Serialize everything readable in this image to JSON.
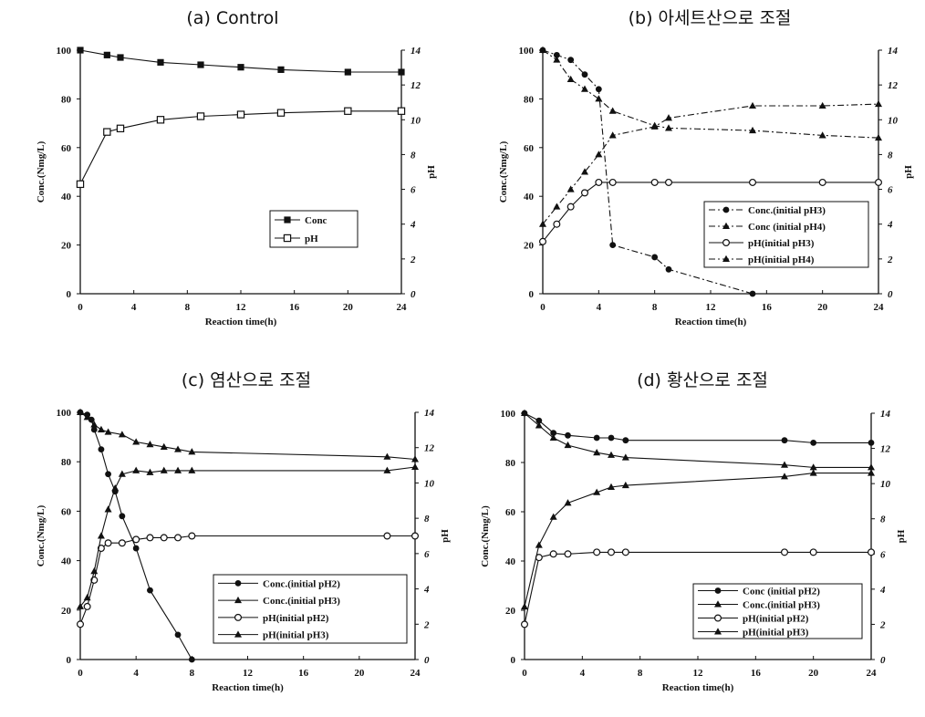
{
  "figure": {
    "panels": [
      {
        "title": "(a) Control",
        "xlabel": "Reaction time(h)",
        "ylabel": "Conc.(Nmg/L)",
        "y2label": "pH"
      },
      {
        "title": "(b) 아세트산으로 조절",
        "xlabel": "Reaction time(h)",
        "ylabel": "Conc.(Nmg/L)",
        "y2label": "pH"
      },
      {
        "title": "(c) 염산으로 조절",
        "xlabel": "Reaction time(h)",
        "ylabel": "Conc.(Nmg/L)",
        "y2label": "pH"
      },
      {
        "title": "(d) 황산으로 조절",
        "xlabel": "Reaction time(h)",
        "ylabel": "Conc.(Nmg/L)",
        "y2label": "pH"
      }
    ]
  },
  "chart_data": [
    {
      "type": "line",
      "title": "(a) Control",
      "xlabel": "Reaction time(h)",
      "ylabel": "Conc.(Nmg/L)",
      "y2label": "pH",
      "xlim": [
        0,
        24
      ],
      "ylim": [
        0,
        100
      ],
      "y2lim": [
        0,
        14
      ],
      "xticks": [
        0,
        4,
        8,
        12,
        16,
        20,
        24
      ],
      "yticks": [
        0,
        20,
        40,
        60,
        80,
        100
      ],
      "y2ticks": [
        0,
        2,
        4,
        6,
        8,
        10,
        12,
        14
      ],
      "legend_position": "middle-right",
      "series": [
        {
          "name": "Conc",
          "axis": "left",
          "marker": "square-filled",
          "dash": "solid",
          "x": [
            0,
            2,
            3,
            6,
            9,
            12,
            15,
            20,
            24
          ],
          "y": [
            100,
            98,
            97,
            95,
            94,
            93,
            92,
            91,
            91
          ]
        },
        {
          "name": "pH",
          "axis": "right",
          "marker": "square-open",
          "dash": "solid",
          "x": [
            0,
            2,
            3,
            6,
            9,
            12,
            15,
            20,
            24
          ],
          "y": [
            6.3,
            9.3,
            9.5,
            10.0,
            10.2,
            10.3,
            10.4,
            10.5,
            10.5
          ]
        }
      ]
    },
    {
      "type": "line",
      "title": "(b) 아세트산으로 조절",
      "xlabel": "Reaction time(h)",
      "ylabel": "Conc.(Nmg/L)",
      "y2label": "pH",
      "xlim": [
        0,
        24
      ],
      "ylim": [
        0,
        100
      ],
      "y2lim": [
        0,
        14
      ],
      "xticks": [
        0,
        4,
        8,
        12,
        16,
        20,
        24
      ],
      "yticks": [
        0,
        20,
        40,
        60,
        80,
        100
      ],
      "y2ticks": [
        0,
        2,
        4,
        6,
        8,
        10,
        12,
        14
      ],
      "legend_position": "middle-right",
      "series": [
        {
          "name": "Conc.(initial pH3)",
          "axis": "left",
          "marker": "circle-filled",
          "dash": "dashdot",
          "x": [
            0,
            1,
            2,
            3,
            4,
            5,
            8,
            9,
            15
          ],
          "y": [
            100,
            98,
            96,
            90,
            84,
            20,
            15,
            10,
            0
          ]
        },
        {
          "name": "Conc (initial pH4)",
          "axis": "left",
          "marker": "triangle-filled",
          "dash": "dashdot",
          "x": [
            0,
            1,
            2,
            3,
            4,
            5,
            8,
            9,
            15,
            20,
            24
          ],
          "y": [
            100,
            96,
            88,
            84,
            80,
            75,
            69,
            68,
            67,
            65,
            64
          ]
        },
        {
          "name": "pH(initial pH3)",
          "axis": "right",
          "marker": "circle-open",
          "dash": "solid",
          "x": [
            0,
            1,
            2,
            3,
            4,
            5,
            8,
            9,
            15,
            20,
            24
          ],
          "y": [
            3.0,
            4.0,
            5.0,
            5.8,
            6.4,
            6.4,
            6.4,
            6.4,
            6.4,
            6.4,
            6.4
          ]
        },
        {
          "name": "pH(initial pH4)",
          "axis": "right",
          "marker": "triangle-filled",
          "dash": "dashdot",
          "x": [
            0,
            1,
            2,
            3,
            4,
            5,
            8,
            9,
            15,
            20,
            24
          ],
          "y": [
            4.0,
            5.0,
            6.0,
            7.0,
            8.0,
            9.1,
            9.6,
            10.1,
            10.8,
            10.8,
            10.9
          ]
        }
      ]
    },
    {
      "type": "line",
      "title": "(c) 염산으로 조절",
      "xlabel": "Reaction time(h)",
      "ylabel": "Conc.(Nmg/L)",
      "y2label": "pH",
      "xlim": [
        0,
        24
      ],
      "ylim": [
        0,
        100
      ],
      "y2lim": [
        0,
        14
      ],
      "xticks": [
        0,
        4,
        8,
        12,
        16,
        20,
        24
      ],
      "yticks": [
        0,
        20,
        40,
        60,
        80,
        100
      ],
      "y2ticks": [
        0,
        2,
        4,
        6,
        8,
        10,
        12,
        14
      ],
      "legend_position": "bottom-right",
      "series": [
        {
          "name": "Conc.(initial pH2)",
          "axis": "left",
          "marker": "circle-filled",
          "dash": "solid",
          "x": [
            0,
            0.5,
            0.8,
            1,
            1.5,
            2,
            2.5,
            3,
            4,
            5,
            7,
            8
          ],
          "y": [
            100,
            99,
            97,
            93,
            85,
            75,
            68,
            58,
            45,
            28,
            10,
            0
          ]
        },
        {
          "name": "Conc.(initial pH3)",
          "axis": "left",
          "marker": "triangle-filled",
          "dash": "solid",
          "x": [
            0,
            0.5,
            1,
            1.5,
            2,
            3,
            4,
            5,
            6,
            7,
            8,
            22,
            24
          ],
          "y": [
            100,
            98,
            95,
            93,
            92,
            91,
            88,
            87,
            86,
            85,
            84,
            82,
            81
          ]
        },
        {
          "name": "pH(initial pH2)",
          "axis": "right",
          "marker": "circle-open",
          "dash": "solid",
          "x": [
            0,
            0.5,
            1,
            1.5,
            2,
            3,
            4,
            5,
            6,
            7,
            8,
            22,
            24
          ],
          "y": [
            2.0,
            3.0,
            4.5,
            6.3,
            6.6,
            6.6,
            6.8,
            6.9,
            6.9,
            6.9,
            7.0,
            7.0,
            7.0
          ]
        },
        {
          "name": "pH(initial pH3)",
          "axis": "right",
          "marker": "triangle-filled",
          "dash": "solid",
          "x": [
            0,
            0.5,
            1,
            1.5,
            2,
            2.5,
            3,
            4,
            5,
            6,
            7,
            8,
            22,
            24
          ],
          "y": [
            3.0,
            3.5,
            5.0,
            7.0,
            8.5,
            9.7,
            10.5,
            10.7,
            10.6,
            10.7,
            10.7,
            10.7,
            10.7,
            10.9
          ]
        }
      ]
    },
    {
      "type": "line",
      "title": "(d) 황산으로 조절",
      "xlabel": "Reaction time(h)",
      "ylabel": "Conc.(Nmg/L)",
      "y2label": "pH",
      "xlim": [
        0,
        24
      ],
      "ylim": [
        0,
        100
      ],
      "y2lim": [
        0,
        14
      ],
      "xticks": [
        0,
        4,
        8,
        12,
        16,
        20,
        24
      ],
      "yticks": [
        0,
        20,
        40,
        60,
        80,
        100
      ],
      "y2ticks": [
        0,
        2,
        4,
        6,
        8,
        10,
        12,
        14
      ],
      "legend_position": "bottom-right",
      "series": [
        {
          "name": "Conc (initial pH2)",
          "axis": "left",
          "marker": "circle-filled",
          "dash": "solid",
          "x": [
            0,
            1,
            2,
            3,
            5,
            6,
            7,
            18,
            20,
            24
          ],
          "y": [
            100,
            97,
            92,
            91,
            90,
            90,
            89,
            89,
            88,
            88
          ]
        },
        {
          "name": "Conc.(initial pH3)",
          "axis": "left",
          "marker": "triangle-filled",
          "dash": "solid",
          "x": [
            0,
            1,
            2,
            3,
            5,
            6,
            7,
            18,
            20,
            24
          ],
          "y": [
            100,
            95,
            90,
            87,
            84,
            83,
            82,
            79,
            78,
            78
          ]
        },
        {
          "name": "pH(initial pH2)",
          "axis": "right",
          "marker": "circle-open",
          "dash": "solid",
          "x": [
            0,
            1,
            2,
            3,
            5,
            6,
            7,
            18,
            20,
            24
          ],
          "y": [
            2.0,
            5.8,
            6.0,
            6.0,
            6.1,
            6.1,
            6.1,
            6.1,
            6.1,
            6.1
          ]
        },
        {
          "name": "pH(initial pH3)",
          "axis": "right",
          "marker": "triangle-filled",
          "dash": "solid",
          "x": [
            0,
            1,
            2,
            3,
            5,
            6,
            7,
            18,
            20,
            24
          ],
          "y": [
            3.0,
            6.5,
            8.1,
            8.9,
            9.5,
            9.8,
            9.9,
            10.4,
            10.6,
            10.6
          ]
        }
      ]
    }
  ]
}
